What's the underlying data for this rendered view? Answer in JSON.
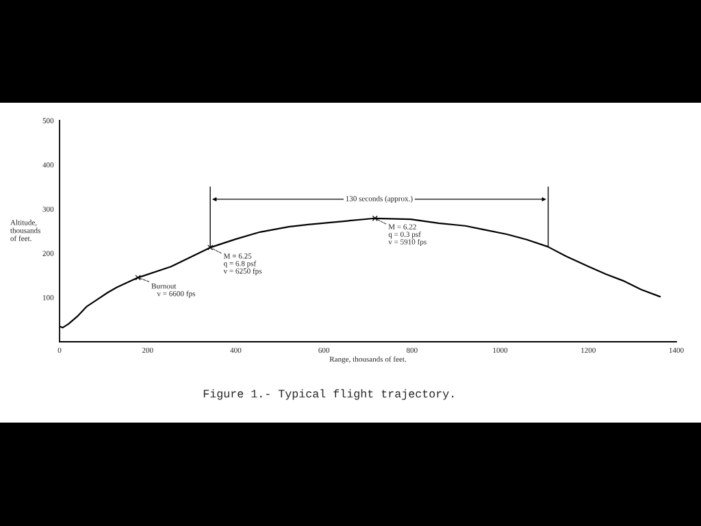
{
  "chart_data": {
    "type": "line",
    "title": "Figure 1.- Typical flight trajectory.",
    "xlabel": "Range, thousands of feet.",
    "ylabel": "Altitude,\nthousands\nof feet.",
    "x": [
      2,
      7,
      20,
      40,
      62,
      82,
      109,
      130,
      178,
      253,
      342,
      400,
      455,
      520,
      564,
      640,
      716,
      797,
      860,
      921,
      960,
      1015,
      1060,
      1108,
      1150,
      1201,
      1240,
      1279,
      1320,
      1363
    ],
    "series": [
      {
        "color": "#000000",
        "values": [
          34,
          32,
          40,
          57,
          80,
          93,
          111,
          123,
          145,
          170,
          213,
          232,
          248,
          260,
          265,
          272,
          279,
          277,
          268,
          262,
          254,
          243,
          231,
          215,
          193,
          170,
          153,
          138,
          118,
          102
        ]
      }
    ],
    "xlim": [
      0,
      1400
    ],
    "xticks": [
      0,
      200,
      400,
      600,
      800,
      1000,
      1200,
      1400
    ],
    "ylim": [
      0,
      500
    ],
    "yticks": [
      100,
      200,
      300,
      400,
      500
    ],
    "ref_lines": [
      {
        "axis": "x",
        "value": 342,
        "color": "#000000"
      },
      {
        "axis": "x",
        "value": 1109,
        "color": "#000000"
      }
    ],
    "annotations": [
      "130 seconds (approx.)",
      {
        "text": "Burnout\n   v = 6600 fps",
        "x": 178,
        "y": 145
      },
      {
        "text": "M = 6.25\nq = 6.8 psf\nv = 6250 fps",
        "x": 342,
        "y": 213
      },
      {
        "text": "M = 6.22\nq = 0.3 psf\nv = 5910 fps",
        "x": 716,
        "y": 279
      }
    ],
    "grid": false,
    "legend": false,
    "marker": "none",
    "line_style": "solid"
  }
}
